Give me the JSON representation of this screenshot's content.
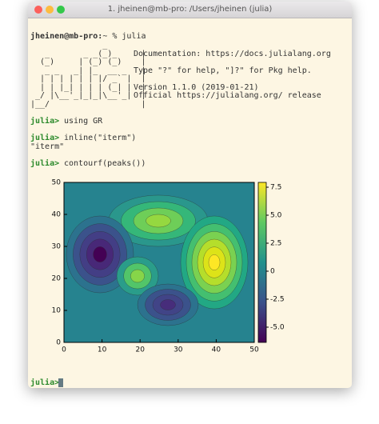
{
  "window": {
    "title": "1. jheinen@mb-pro: /Users/jheinen (julia)"
  },
  "session": {
    "login": {
      "prompt": "jheinen@mb-pro:",
      "rest": "~ % julia"
    },
    "banner": [
      "               _",
      "   _       _ _(_)_     |",
      "  (_)     | (_) (_)    |",
      "   _ _   _| |_  __ _   |",
      "  | | | | | | |/ _` |  |",
      "  | | |_| | | | (_| |  |",
      " _/ |\\__'_|_|_|\\__'_|  |",
      "|__/                   |"
    ],
    "info": [
      "Documentation: https://docs.julialang.org",
      "Type \"?\" for help, \"]?\" for Pkg help.",
      "Version 1.1.0 (2019-01-21)",
      "Official https://julialang.org/ release"
    ],
    "commands": [
      {
        "prompt": "julia>",
        "input": "using GR"
      },
      {
        "prompt": "julia>",
        "input": "inline(\"iterm\")",
        "output": "\"iterm\""
      },
      {
        "prompt": "julia>",
        "input": "contourf(peaks())"
      }
    ],
    "final_prompt": "julia>"
  },
  "chart_data": {
    "type": "contourf",
    "xlim": [
      0,
      50
    ],
    "xticks": [
      0,
      10,
      20,
      30,
      40,
      50
    ],
    "ylim": [
      0,
      50
    ],
    "yticks": [
      0,
      10,
      20,
      30,
      40,
      50
    ],
    "clim": [
      -6.36,
      7.93
    ],
    "cticks": [
      7.5,
      {
        "value": 5,
        "label": "5.0"
      },
      2.5,
      0,
      -2.5,
      {
        "value": -5,
        "label": "-5.0"
      }
    ]
  }
}
